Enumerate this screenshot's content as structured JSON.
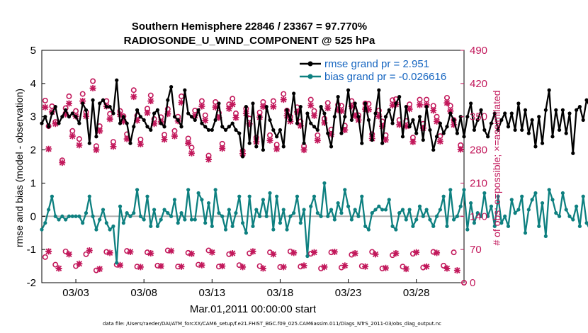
{
  "chart_data": {
    "type": "line",
    "title": "Southern Hemisphere 22846 / 23367 = 97.770%",
    "subtitle": "RADIOSONDE_U_WIND_COMPONENT @ 525 hPa",
    "xlabel": "Mar.01,2011 00:00:00 start",
    "ylabel": "rmse and bias (model - observation)",
    "y2label": "# of obs: o=possible; ×=assimilated",
    "xlim": [
      0.5,
      31.5
    ],
    "ylim": [
      -2,
      5
    ],
    "y2lim": [
      0,
      490
    ],
    "x_tick_labels": [
      "03/03",
      "03/08",
      "03/13",
      "03/18",
      "03/23",
      "03/28"
    ],
    "x_tick_positions": [
      3,
      8,
      13,
      18,
      23,
      28
    ],
    "y_ticks": [
      "-2",
      "-1",
      "0",
      "1",
      "2",
      "3",
      "4",
      "5"
    ],
    "y2_ticks": [
      "0",
      "70",
      "140",
      "210",
      "280",
      "350",
      "420",
      "490"
    ],
    "legend": {
      "position": "top-right",
      "rmse_label": "rmse grand pr = 2.951",
      "bias_label": "bias grand pr = -0.026616"
    },
    "series": [
      {
        "name": "rmse",
        "color": "#000000",
        "start": 0.5,
        "step": 0.25,
        "values": [
          2.8,
          3.0,
          2.7,
          3.1,
          3.3,
          2.8,
          3.0,
          3.2,
          3.0,
          3.1,
          3.0,
          2.8,
          3.4,
          3.2,
          2.2,
          3.5,
          2.4,
          3.4,
          3.5,
          3.3,
          3.3,
          3.1,
          4.1,
          2.8,
          3.0,
          2.8,
          2.2,
          2.7,
          3.2,
          3.0,
          2.9,
          2.7,
          2.6,
          3.1,
          3.2,
          2.8,
          2.7,
          3.5,
          3.9,
          3.0,
          2.9,
          2.7,
          3.8,
          3.1,
          3.0,
          2.9,
          3.2,
          2.8,
          2.7,
          2.6,
          2.6,
          2.9,
          3.4,
          2.7,
          2.6,
          2.7,
          2.8,
          2.6,
          2.5,
          1.8,
          3.3,
          2.2,
          3.4,
          2.1,
          3.0,
          2.0,
          3.3,
          2.9,
          2.6,
          2.4,
          2.6,
          2.1,
          3.2,
          2.9,
          3.7,
          2.8,
          3.3,
          2.2,
          3.1,
          2.8,
          2.7,
          2.6,
          3.3,
          3.1,
          2.5,
          2.1,
          3.0,
          3.6,
          2.5,
          3.0,
          3.8,
          2.9,
          3.4,
          3.0,
          2.2,
          3.4,
          2.9,
          2.3,
          3.1,
          3.8,
          2.2,
          3.0,
          3.2,
          2.8,
          3.4,
          3.6,
          2.4,
          3.3,
          2.7,
          2.9,
          2.5,
          3.0,
          2.3,
          3.3,
          2.6,
          2.0,
          2.4,
          2.8,
          2.5,
          2.7,
          3.1,
          2.9,
          2.5,
          3.0,
          2.4,
          3.0,
          3.4,
          2.6,
          2.9,
          3.2,
          2.6,
          2.4,
          2.8,
          3.1,
          2.6,
          2.9,
          3.1,
          2.7,
          3.1,
          2.6,
          3.4,
          2.6,
          3.2,
          2.5,
          2.9,
          2.1,
          3.0,
          2.2,
          3.2,
          3.8,
          2.4,
          3.2,
          2.6,
          3.2,
          2.5,
          3.1,
          1.9,
          3.2,
          3.3,
          2.9,
          3.5,
          3.3,
          3.4,
          3.1,
          3.4,
          2.5,
          3.0,
          3.2,
          2.7,
          3.4,
          3.9,
          3.5,
          3.2,
          2.4,
          2.8,
          2.1
        ]
      },
      {
        "name": "bias",
        "color": "#0e8080",
        "start": 0.5,
        "step": 0.25,
        "values": [
          -0.4,
          -0.2,
          0.2,
          0.6,
          0.0,
          -0.1,
          0.0,
          -0.1,
          0.0,
          0.0,
          0.0,
          0.0,
          -0.2,
          0.1,
          0.6,
          0.0,
          -0.4,
          -0.1,
          0.2,
          -0.2,
          -0.4,
          -0.3,
          -1.4,
          0.3,
          -0.2,
          0.1,
          0.0,
          0.1,
          0.8,
          0.0,
          -0.1,
          0.6,
          -0.3,
          0.2,
          -0.3,
          -0.1,
          0.2,
          0.1,
          0.0,
          0.5,
          -0.2,
          0.1,
          -0.1,
          0.8,
          -0.1,
          -0.1,
          0.7,
          0.5,
          -0.2,
          0.4,
          -0.3,
          0.8,
          0.1,
          0.0,
          -0.4,
          0.2,
          -0.3,
          0.1,
          0.6,
          -0.2,
          -0.5,
          0.6,
          -0.3,
          0.2,
          0.0,
          0.5,
          0.0,
          0.7,
          -0.4,
          0.6,
          -0.2,
          0.2,
          -0.4,
          0.0,
          0.1,
          0.6,
          -0.2,
          0.2,
          -1.2,
          0.3,
          0.6,
          0.1,
          0.0,
          1.0,
          0.0,
          0.2,
          -0.1,
          0.4,
          0.1,
          0.8,
          0.3,
          -0.1,
          0.2,
          0.0,
          0.6,
          -0.3,
          -0.4,
          0.1,
          0.2,
          0.3,
          0.2,
          0.2,
          0.5,
          -0.3,
          -0.4,
          0.1,
          0.2,
          -0.1,
          0.2,
          -0.3,
          -0.1,
          0.3,
          0.0,
          0.2,
          -0.1,
          -0.3,
          0.0,
          0.2,
          0.6,
          -0.3,
          0.8,
          -0.1,
          0.0,
          0.3,
          0.8,
          -0.4,
          0.4,
          -0.2,
          0.1,
          0.0,
          0.7,
          0.0,
          0.3,
          -0.3,
          0.6,
          -0.2,
          0.0,
          -0.3,
          0.5,
          0.1,
          0.2,
          0.6,
          -0.5,
          0.2,
          0.5,
          0.7,
          -0.3,
          0.4,
          -0.6,
          0.8,
          0.5,
          0.1,
          0.0,
          0.7,
          0.2,
          0.0,
          -0.1,
          0.3,
          -0.3,
          0.6,
          -0.2,
          -0.4,
          -0.1,
          1.1,
          0.9,
          0.6,
          1.1,
          0.8,
          0.5,
          0.4,
          0.0,
          -0.4
        ]
      },
      {
        "name": "obs possible (o)",
        "color": "#c2185b",
        "axis": "right",
        "x": [
          0.75,
          1.0,
          1.25,
          1.5,
          2.0,
          2.25,
          2.5,
          2.75,
          3.0,
          3.25,
          3.5,
          3.75,
          4.25,
          4.5,
          4.75,
          5.25,
          5.5,
          5.75,
          6.25,
          6.5,
          6.75,
          7.25,
          7.5,
          7.75,
          8.25,
          8.5,
          8.75,
          9.25,
          9.5,
          9.75,
          10.25,
          10.5,
          10.75,
          11.25,
          11.5,
          11.75,
          12.25,
          12.5,
          12.75,
          13.25,
          13.5,
          13.75,
          14.25,
          14.5,
          14.75,
          15.25,
          15.5,
          15.75,
          16.25,
          16.5,
          16.75,
          17.25,
          17.5,
          17.75,
          18.25,
          18.5,
          18.75,
          19.25,
          19.5,
          19.75,
          20.25,
          20.5,
          20.75,
          21.25,
          21.5,
          21.75,
          22.25,
          22.5,
          22.75,
          23.25,
          23.5,
          23.75,
          24.25,
          24.5,
          24.75,
          25.25,
          25.5,
          25.75,
          26.25,
          26.5,
          26.75,
          27.25,
          27.5,
          27.75,
          28.25,
          28.5,
          28.75,
          29.25,
          29.5,
          29.75,
          30.25,
          30.5,
          30.75,
          31.25
        ],
        "values": [
          384,
          330,
          372,
          339,
          258,
          368,
          393,
          320,
          362,
          303,
          398,
          360,
          425,
          288,
          330,
          383,
          356,
          297,
          362,
          351,
          313,
          406,
          352,
          302,
          367,
          395,
          345,
          349,
          312,
          366,
          320,
          350,
          393,
          304,
          285,
          363,
          383,
          353,
          268,
          381,
          358,
          293,
          376,
          388,
          357,
          278,
          367,
          346,
          306,
          359,
          381,
          311,
          383,
          291,
          398,
          363,
          350,
          370,
          340,
          288,
          386,
          362,
          311,
          346,
          379,
          323,
          375,
          373,
          331,
          383,
          362,
          353,
          378,
          377,
          313,
          363,
          340,
          311,
          385,
          387,
          343,
          341,
          376,
          306,
          386,
          335,
          386,
          373,
          350,
          309,
          390,
          373,
          343,
          290
        ]
      },
      {
        "name": "obs assimilated (×)",
        "color": "#c2185b",
        "axis": "right",
        "x": [
          0.75,
          1.0,
          1.25,
          1.5,
          2.0,
          2.25,
          2.5,
          2.75,
          3.0,
          3.25,
          3.5,
          3.75,
          4.25,
          4.5,
          4.75,
          5.25,
          5.5,
          5.75,
          6.25,
          6.5,
          6.75,
          7.25,
          7.5,
          7.75,
          8.25,
          8.5,
          8.75,
          9.25,
          9.5,
          9.75,
          10.25,
          10.5,
          10.75,
          11.25,
          11.5,
          11.75,
          12.25,
          12.5,
          12.75,
          13.25,
          13.5,
          13.75,
          14.25,
          14.5,
          14.75,
          15.25,
          15.5,
          15.75,
          16.25,
          16.5,
          16.75,
          17.25,
          17.5,
          17.75,
          18.25,
          18.5,
          18.75,
          19.25,
          19.5,
          19.75,
          20.25,
          20.5,
          20.75,
          21.25,
          21.5,
          21.75,
          22.25,
          22.5,
          22.75,
          23.25,
          23.5,
          23.75,
          24.25,
          24.5,
          24.75,
          25.25,
          25.5,
          25.75,
          26.25,
          26.5,
          26.75,
          27.25,
          27.5,
          27.75,
          28.25,
          28.5,
          28.75,
          29.25,
          29.5,
          29.75,
          30.25,
          30.5,
          30.75,
          31.25
        ],
        "values": [
          370,
          282,
          360,
          335,
          253,
          355,
          378,
          309,
          351,
          290,
          383,
          351,
          410,
          280,
          320,
          372,
          345,
          287,
          355,
          340,
          303,
          392,
          342,
          292,
          358,
          383,
          335,
          339,
          302,
          356,
          309,
          341,
          380,
          294,
          273,
          352,
          372,
          342,
          260,
          370,
          348,
          283,
          367,
          376,
          348,
          272,
          357,
          335,
          297,
          349,
          371,
          300,
          371,
          282,
          386,
          352,
          340,
          360,
          331,
          280,
          374,
          352,
          300,
          337,
          368,
          313,
          364,
          362,
          322,
          372,
          352,
          343,
          366,
          365,
          304,
          351,
          330,
          301,
          374,
          376,
          333,
          330,
          366,
          297,
          375,
          326,
          375,
          363,
          340,
          298,
          379,
          362,
          333,
          281
        ]
      },
      {
        "name": "obs low possible (o)",
        "color": "#c2185b",
        "axis": "right",
        "x": [
          0.75,
          1.5,
          2.25,
          3.0,
          3.75,
          4.5,
          5.25,
          6.0,
          6.75,
          7.5,
          8.25,
          9.0,
          9.75,
          10.5,
          11.25,
          12.0,
          12.75,
          13.5,
          14.25,
          15.0,
          15.75,
          16.5,
          17.25,
          18.0,
          18.75,
          19.5,
          20.25,
          21.0,
          21.75,
          22.5,
          23.25,
          24.0,
          24.75,
          25.5,
          26.25,
          27.0,
          27.75,
          28.5,
          29.25,
          30.0,
          30.75,
          31.5
        ],
        "values": [
          54,
          38,
          66,
          35,
          60,
          26,
          65,
          38,
          67,
          34,
          64,
          36,
          68,
          34,
          63,
          38,
          68,
          34,
          60,
          37,
          62,
          35,
          64,
          33,
          66,
          34,
          61,
          30,
          64,
          32,
          59,
          35,
          65,
          30,
          58,
          34,
          61,
          32,
          65,
          36,
          64,
          0
        ]
      },
      {
        "name": "obs low assimilated (×)",
        "color": "#c2185b",
        "axis": "right",
        "x": [
          1.0,
          1.75,
          2.5,
          3.25,
          4.0,
          4.75,
          5.5,
          6.25,
          7.0,
          7.75,
          8.5,
          9.25,
          10.0,
          10.75,
          11.5,
          12.25,
          13.0,
          13.75,
          14.5,
          15.25,
          16.0,
          16.75,
          17.5,
          18.25,
          19.0,
          19.75,
          20.5,
          21.25,
          22.0,
          22.75,
          23.5,
          24.25,
          25.0,
          25.75,
          26.5,
          27.25,
          28.0,
          28.75,
          29.5,
          30.25,
          31.0
        ],
        "values": [
          66,
          30,
          60,
          40,
          68,
          29,
          63,
          37,
          65,
          33,
          62,
          35,
          67,
          34,
          61,
          37,
          64,
          35,
          62,
          33,
          66,
          30,
          60,
          33,
          63,
          36,
          64,
          33,
          65,
          36,
          62,
          34,
          60,
          31,
          62,
          29,
          64,
          34,
          63,
          30,
          26
        ]
      }
    ]
  },
  "footer": {
    "data_file": "data file: /Users/raeder/DAI/ATM_forcXX/CAM6_setup/f.e21.FHIST_BGC.f09_025.CAM6assim.011/Diags_NTrS_2011-03/obs_diag_output.nc"
  }
}
